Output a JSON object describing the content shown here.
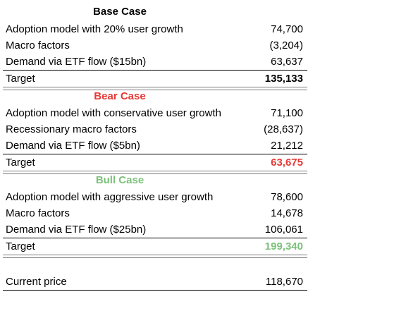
{
  "colors": {
    "bear_accent": "#e53935",
    "bull_accent": "#7cc17a",
    "text": "#000000"
  },
  "sections": [
    {
      "title": "Base Case",
      "rows": [
        {
          "label": "Adoption model with 20% user growth",
          "value": "74,700"
        },
        {
          "label": "Macro factors",
          "value": "(3,204)"
        },
        {
          "label": "Demand via ETF flow ($15bn)",
          "value": "63,637"
        }
      ],
      "target": {
        "label": "Target",
        "value": "135,133"
      }
    },
    {
      "title": "Bear Case",
      "rows": [
        {
          "label": "Adoption model with conservative user growth",
          "value": "71,100"
        },
        {
          "label": "Recessionary macro factors",
          "value": "(28,637)"
        },
        {
          "label": "Demand via ETF flow ($5bn)",
          "value": "21,212"
        }
      ],
      "target": {
        "label": "Target",
        "value": "63,675"
      }
    },
    {
      "title": "Bull Case",
      "rows": [
        {
          "label": "Adoption model with aggressive user growth",
          "value": "78,600"
        },
        {
          "label": "Macro factors",
          "value": "14,678"
        },
        {
          "label": "Demand via ETF flow ($25bn)",
          "value": "106,061"
        }
      ],
      "target": {
        "label": "Target",
        "value": "199,340"
      }
    }
  ],
  "current_price": {
    "label": "Current price",
    "value": "118,670"
  }
}
